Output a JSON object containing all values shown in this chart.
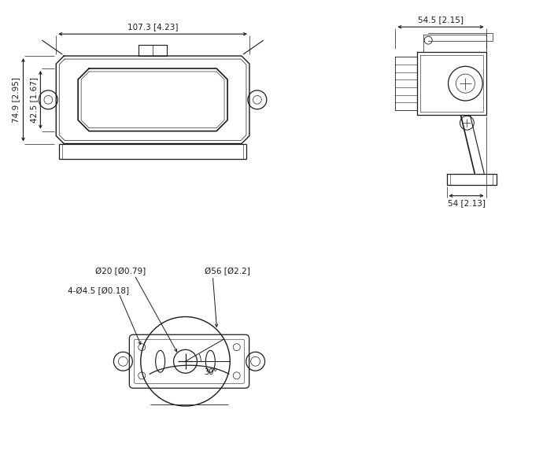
{
  "bg_color": "#ffffff",
  "line_color": "#1a1a1a",
  "dim_color": "#1a1a1a",
  "font_size": 7.5,
  "front_view": {
    "dim_top": "107.3 [4.23]",
    "dim_left1": "74.9 [2.95]",
    "dim_left2": "42.5 [1.67]"
  },
  "side_view": {
    "dim_top": "54.5 [2.15]",
    "dim_bot": "54 [2.13]"
  },
  "bottom_view": {
    "label1": "Ø20 [Ø0.79]",
    "label2": "4-Ø4.5 [Ø0.18]",
    "label3": "Ø56 [Ø2.2]",
    "label4": "30°"
  }
}
